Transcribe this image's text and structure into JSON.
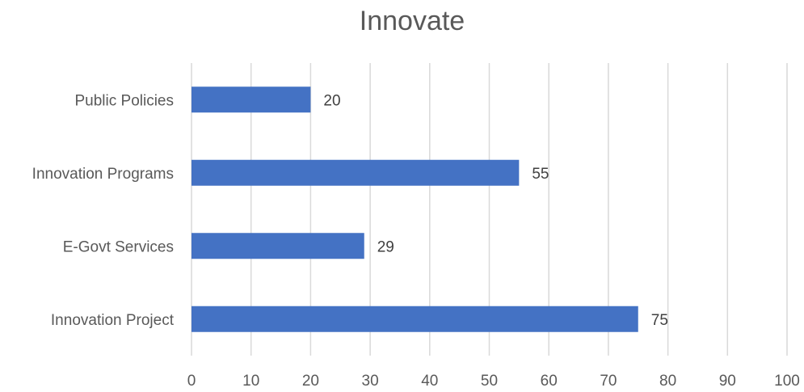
{
  "chart_data": {
    "type": "bar",
    "orientation": "horizontal",
    "title": "Innovate",
    "categories": [
      "Innovation Project",
      "E-Govt Services",
      "Innovation Programs",
      "Public Policies"
    ],
    "values": [
      75,
      29,
      55,
      20
    ],
    "data_labels": [
      "75",
      "29",
      "55",
      "20"
    ],
    "xlim": [
      0,
      100
    ],
    "xticks": [
      0,
      10,
      20,
      30,
      40,
      50,
      60,
      70,
      80,
      90,
      100
    ],
    "xtick_labels": [
      "0",
      "10",
      "20",
      "30",
      "40",
      "50",
      "60",
      "70",
      "80",
      "90",
      "100"
    ],
    "xlabel": "",
    "ylabel": "",
    "grid": true,
    "legend": false,
    "bar_color": "#4472c4",
    "grid_color": "#d9d9d9",
    "text_color": "#595959"
  }
}
